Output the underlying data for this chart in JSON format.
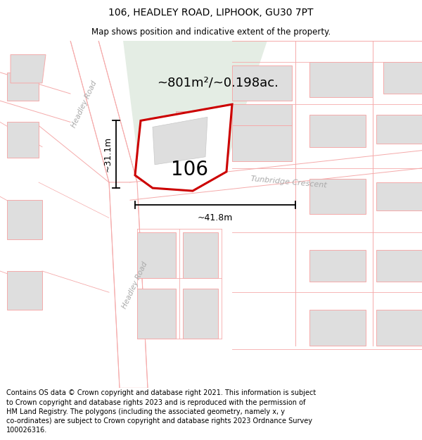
{
  "title": "106, HEADLEY ROAD, LIPHOOK, GU30 7PT",
  "subtitle": "Map shows position and indicative extent of the property.",
  "footer": "Contains OS data © Crown copyright and database right 2021. This information is subject to Crown copyright and database rights 2023 and is reproduced with the permission of HM Land Registry. The polygons (including the associated geometry, namely x, y co-ordinates) are subject to Crown copyright and database rights 2023 Ordnance Survey 100026316.",
  "area_label": "~801m²/~0.198ac.",
  "label_106": "106",
  "dim_vertical": "~31.1m",
  "dim_horizontal": "~41.8m",
  "road_label_upper": "Headley Road",
  "road_label_lower": "Headley Road",
  "road_label_tc": "Tunbridge Crescent",
  "bg_color": "#ffffff",
  "map_bg": "#f7f7f7",
  "road_fill": "#ffffff",
  "green_fill": "#e4ede4",
  "plot_fill": "#ffffff",
  "plot_stroke": "#cc0000",
  "building_fill": "#dedede",
  "road_stroke": "#f5aaaa",
  "dim_color": "#000000",
  "label_color": "#000000",
  "road_name_color": "#aaaaaa",
  "title_fontsize": 10,
  "subtitle_fontsize": 8.5,
  "footer_fontsize": 7.0
}
